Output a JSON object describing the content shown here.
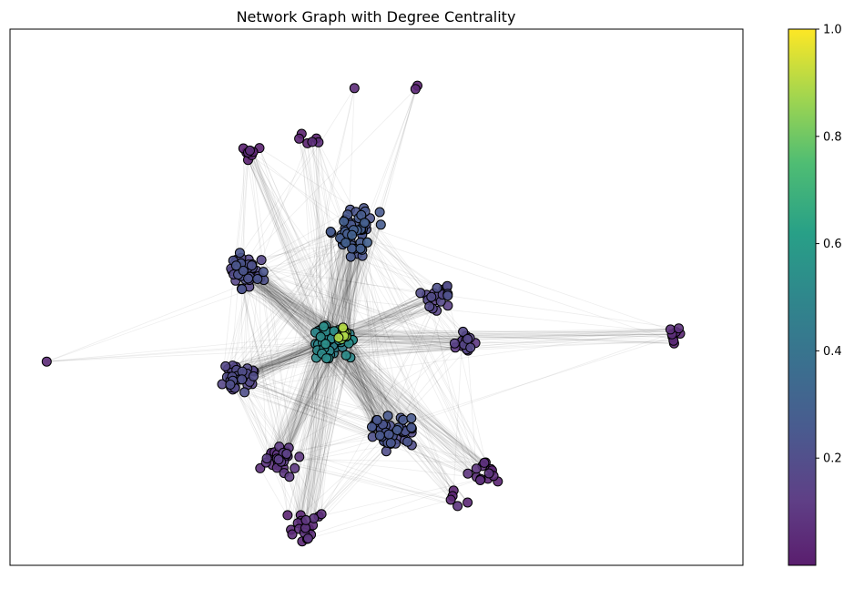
{
  "chart_data": {
    "type": "scatter",
    "title": "Network Graph with Degree Centrality",
    "xlabel": "",
    "ylabel": "",
    "axes_visible": false,
    "grid": false,
    "legend": "none",
    "colormap": "viridis",
    "node_color": "degree centrality",
    "edge_color": "#000000",
    "node_edge_color": "#000000",
    "colorbar": {
      "placement": "right",
      "range": [
        0.0,
        1.0
      ],
      "tick_labels": [
        "0.2",
        "0.4",
        "0.6",
        "0.8",
        "1.0"
      ],
      "tick_values": [
        0.2,
        0.4,
        0.6,
        0.8,
        1.0
      ]
    },
    "node_groups": [
      {
        "x": 0.05,
        "y": 0.62,
        "spread": 0.005,
        "count": 1,
        "value": 0.05
      },
      {
        "x": 0.47,
        "y": 0.11,
        "spread": 0.005,
        "count": 1,
        "value": 0.02
      },
      {
        "x": 0.56,
        "y": 0.11,
        "spread": 0.025,
        "count": 2,
        "value": 0.02
      },
      {
        "x": 0.33,
        "y": 0.23,
        "spread": 0.03,
        "count": 8,
        "value": 0.03
      },
      {
        "x": 0.41,
        "y": 0.21,
        "spread": 0.02,
        "count": 6,
        "value": 0.03
      },
      {
        "x": 0.91,
        "y": 0.57,
        "spread": 0.02,
        "count": 8,
        "value": 0.06
      },
      {
        "x": 0.47,
        "y": 0.38,
        "spread": 0.045,
        "count": 50,
        "value": 0.26
      },
      {
        "x": 0.32,
        "y": 0.45,
        "spread": 0.035,
        "count": 45,
        "value": 0.2
      },
      {
        "x": 0.31,
        "y": 0.65,
        "spread": 0.035,
        "count": 40,
        "value": 0.18
      },
      {
        "x": 0.37,
        "y": 0.8,
        "spread": 0.035,
        "count": 30,
        "value": 0.1
      },
      {
        "x": 0.4,
        "y": 0.93,
        "spread": 0.035,
        "count": 22,
        "value": 0.06
      },
      {
        "x": 0.58,
        "y": 0.5,
        "spread": 0.03,
        "count": 20,
        "value": 0.18
      },
      {
        "x": 0.62,
        "y": 0.58,
        "spread": 0.025,
        "count": 16,
        "value": 0.14
      },
      {
        "x": 0.52,
        "y": 0.75,
        "spread": 0.04,
        "count": 45,
        "value": 0.22
      },
      {
        "x": 0.65,
        "y": 0.82,
        "spread": 0.03,
        "count": 14,
        "value": 0.06
      },
      {
        "x": 0.61,
        "y": 0.88,
        "spread": 0.02,
        "count": 5,
        "value": 0.05
      },
      {
        "x": 0.44,
        "y": 0.58,
        "spread": 0.04,
        "count": 60,
        "value": 0.5
      },
      {
        "x": 0.455,
        "y": 0.57,
        "spread": 0.015,
        "count": 12,
        "value": 0.88
      }
    ]
  }
}
